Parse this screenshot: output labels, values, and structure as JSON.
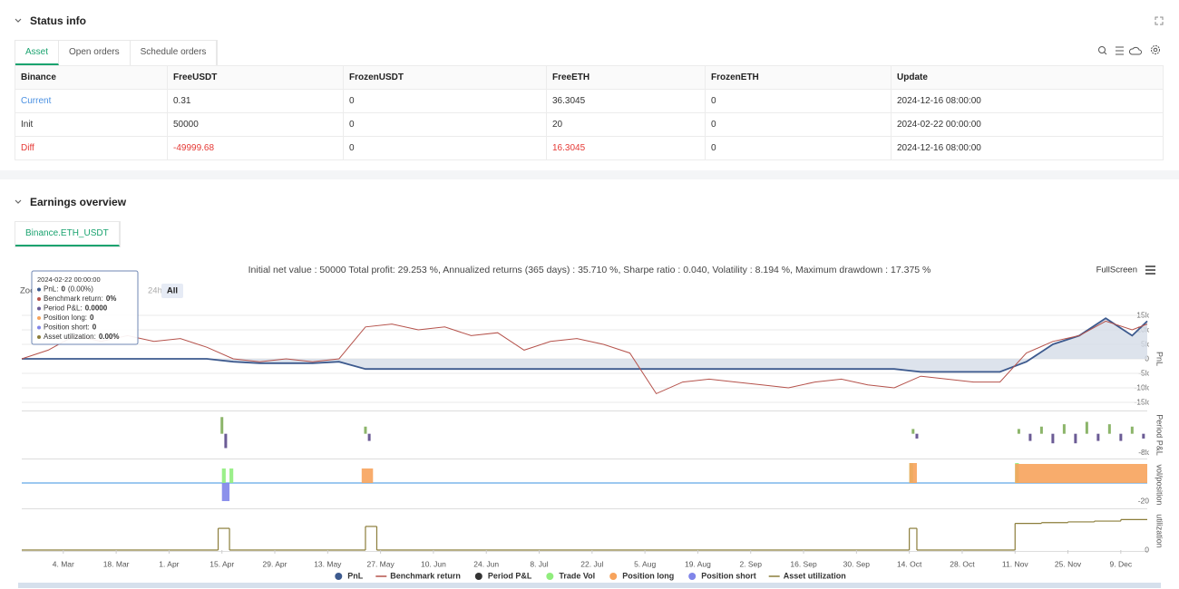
{
  "status_info": {
    "title": "Status info",
    "tabs": [
      "Asset",
      "Open orders",
      "Schedule orders"
    ],
    "table": {
      "columns": [
        "Binance",
        "FreeUSDT",
        "FrozenUSDT",
        "FreeETH",
        "FrozenETH",
        "Update"
      ],
      "rows": [
        [
          "Current",
          "0.31",
          "0",
          "36.3045",
          "0",
          "2024-12-16 08:00:00"
        ],
        [
          "Init",
          "50000",
          "0",
          "20",
          "0",
          "2024-02-22 00:00:00"
        ],
        [
          "Diff",
          "-49999.68",
          "0",
          "16.3045",
          "0",
          "2024-12-16 08:00:00"
        ]
      ]
    }
  },
  "earnings_overview": {
    "title": "Earnings overview",
    "tabs": [
      "Binance.ETH_USDT"
    ],
    "summary": "Initial net value : 50000 Total profit: 29.253 %, Annualized returns (365 days) : 35.710 %, Sharpe ratio : 0.040, Volatility : 8.194 %, Maximum drawdown : 17.375 %",
    "fullscreen": "FullScreen",
    "zoom": {
      "label": "Zoom",
      "buttons": [
        "24h",
        "All"
      ]
    },
    "tooltip": {
      "title": "2024-02-22 00:00:00",
      "items": [
        {
          "label": "PnL:",
          "value": "0",
          "note": "(0.00%)",
          "color": "#3d5a8e"
        },
        {
          "label": "Benchmark return:",
          "value": "0%",
          "color": "#b5524b"
        },
        {
          "label": "Period P&L:",
          "value": "0.0000",
          "color": "#6b5b95"
        },
        {
          "label": "Position long:",
          "value": "0",
          "color": "#f7a35c"
        },
        {
          "label": "Position short:",
          "value": "0",
          "color": "#8085e9"
        },
        {
          "label": "Asset utilization:",
          "value": "0.00%",
          "color": "#8b7d3a"
        }
      ]
    }
  },
  "chart_data": [
    {
      "type": "line",
      "ylabel": "PnL",
      "ylim": [
        -17500,
        17500
      ],
      "grid": true,
      "yticks": [
        {
          "value": 15000,
          "label": "15k"
        },
        {
          "value": 10000,
          "label": "10k"
        },
        {
          "value": 5000,
          "label": "5k"
        },
        0,
        {
          "value": -5000,
          "label": "-5k"
        },
        {
          "value": -10000,
          "label": "-10k"
        },
        {
          "value": -15000,
          "label": "-15k"
        }
      ],
      "x": [
        "2024-02-22",
        "2024-02-29",
        "2024-03-07",
        "2024-03-14",
        "2024-03-21",
        "2024-03-28",
        "2024-04-04",
        "2024-04-11",
        "2024-04-18",
        "2024-04-25",
        "2024-05-02",
        "2024-05-09",
        "2024-05-16",
        "2024-05-23",
        "2024-05-30",
        "2024-06-06",
        "2024-06-13",
        "2024-06-20",
        "2024-06-27",
        "2024-07-04",
        "2024-07-11",
        "2024-07-18",
        "2024-07-25",
        "2024-08-01",
        "2024-08-08",
        "2024-08-15",
        "2024-08-22",
        "2024-08-29",
        "2024-09-05",
        "2024-09-12",
        "2024-09-19",
        "2024-09-26",
        "2024-10-03",
        "2024-10-10",
        "2024-10-17",
        "2024-10-24",
        "2024-10-31",
        "2024-11-07",
        "2024-11-14",
        "2024-11-21",
        "2024-11-28",
        "2024-12-05",
        "2024-12-12",
        "2024-12-16"
      ],
      "series": [
        {
          "name": "PnL",
          "color": "#3d5a8e",
          "area_color": "#d5dce7",
          "values": [
            0,
            0,
            0,
            0,
            0,
            0,
            0,
            0,
            -1000,
            -1500,
            -1500,
            -1500,
            -1000,
            -3500,
            -3500,
            -3500,
            -3500,
            -3500,
            -3500,
            -3500,
            -3500,
            -3500,
            -3500,
            -3500,
            -3500,
            -3500,
            -3500,
            -3500,
            -3500,
            -3500,
            -3500,
            -3500,
            -3500,
            -3500,
            -4500,
            -4500,
            -4500,
            -4500,
            -1000,
            5000,
            8000,
            14000,
            8000,
            13000
          ]
        },
        {
          "name": "Benchmark return",
          "color": "#b5524b",
          "legend_marker": "line",
          "values": [
            0,
            3000,
            8000,
            6000,
            8000,
            6000,
            7000,
            4000,
            0,
            -1000,
            0,
            -1000,
            0,
            11000,
            12000,
            10000,
            11000,
            8000,
            9000,
            3000,
            6000,
            7000,
            5000,
            2000,
            -12000,
            -8000,
            -7000,
            -8000,
            -9000,
            -10000,
            -8000,
            -7000,
            -9000,
            -10000,
            -6000,
            -7000,
            -8000,
            -8000,
            2000,
            6000,
            8000,
            13000,
            10000,
            12000
          ]
        }
      ]
    },
    {
      "type": "bar",
      "ylabel": "Period P&L",
      "ylim": [
        -10000,
        9000
      ],
      "yticks": [
        {
          "value": -8000,
          "label": "-8k"
        }
      ],
      "series": [
        {
          "name": "Period P&L",
          "color": "#333333",
          "positive_color": "#8cb56a",
          "negative_color": "#6b5b95",
          "x": [
            "2024-04-15",
            "2024-04-16",
            "2024-05-23",
            "2024-05-24",
            "2024-10-15",
            "2024-10-16",
            "2024-11-12",
            "2024-11-15",
            "2024-11-18",
            "2024-11-21",
            "2024-11-24",
            "2024-11-27",
            "2024-11-30",
            "2024-12-03",
            "2024-12-06",
            "2024-12-09",
            "2024-12-12",
            "2024-12-15"
          ],
          "values": [
            7000,
            -6000,
            3000,
            -3000,
            2000,
            -2000,
            2000,
            -3000,
            3000,
            -4000,
            4000,
            -4000,
            5000,
            -3000,
            4000,
            -3000,
            3000,
            -2000
          ]
        }
      ]
    },
    {
      "type": "step-area",
      "ylabel": "vol/position",
      "ylim": [
        -27,
        23
      ],
      "yticks": [
        -20
      ],
      "series": [
        {
          "name": "Trade Vol",
          "color": "#90ed7d",
          "x": [
            "2024-02-22",
            "2024-04-15",
            "2024-04-16",
            "2024-04-17",
            "2024-04-18",
            "2024-10-14",
            "2024-10-15",
            "2024-11-11",
            "2024-11-12"
          ],
          "values": [
            0,
            16,
            0,
            16,
            0,
            22,
            0,
            22,
            0
          ]
        },
        {
          "name": "Position long",
          "color": "#f7a35c",
          "x": [
            "2024-02-22",
            "2024-05-22",
            "2024-05-25",
            "2024-10-14",
            "2024-10-16",
            "2024-11-11"
          ],
          "values": [
            0,
            16,
            0,
            22,
            0,
            21
          ]
        },
        {
          "name": "Position short",
          "color": "#8085e9",
          "x": [
            "2024-02-22",
            "2024-04-15",
            "2024-04-17"
          ],
          "values": [
            0,
            -20,
            0
          ]
        }
      ]
    },
    {
      "type": "step-line",
      "ylabel": "utilization",
      "ylim": [
        0,
        100
      ],
      "yticks": [
        0
      ],
      "xlim": [
        "2024-02-22",
        "2024-12-16"
      ],
      "xticks": [
        {
          "value": "2024-03-04",
          "label": "4. Mar"
        },
        {
          "value": "2024-03-18",
          "label": "18. Mar"
        },
        {
          "value": "2024-04-01",
          "label": "1. Apr"
        },
        {
          "value": "2024-04-15",
          "label": "15. Apr"
        },
        {
          "value": "2024-04-29",
          "label": "29. Apr"
        },
        {
          "value": "2024-05-13",
          "label": "13. May"
        },
        {
          "value": "2024-05-27",
          "label": "27. May"
        },
        {
          "value": "2024-06-10",
          "label": "10. Jun"
        },
        {
          "value": "2024-06-24",
          "label": "24. Jun"
        },
        {
          "value": "2024-07-08",
          "label": "8. Jul"
        },
        {
          "value": "2024-07-22",
          "label": "22. Jul"
        },
        {
          "value": "2024-08-05",
          "label": "5. Aug"
        },
        {
          "value": "2024-08-19",
          "label": "19. Aug"
        },
        {
          "value": "2024-09-02",
          "label": "2. Sep"
        },
        {
          "value": "2024-09-16",
          "label": "16. Sep"
        },
        {
          "value": "2024-09-30",
          "label": "30. Sep"
        },
        {
          "value": "2024-10-14",
          "label": "14. Oct"
        },
        {
          "value": "2024-10-28",
          "label": "28. Oct"
        },
        {
          "value": "2024-11-11",
          "label": "11. Nov"
        },
        {
          "value": "2024-11-25",
          "label": "25. Nov"
        },
        {
          "value": "2024-12-09",
          "label": "9. Dec"
        }
      ],
      "series": [
        {
          "name": "Asset utilization",
          "color": "#8b7d3a",
          "legend_marker": "line",
          "x": [
            "2024-02-22",
            "2024-04-14",
            "2024-04-17",
            "2024-05-23",
            "2024-05-26",
            "2024-10-14",
            "2024-10-16",
            "2024-11-11",
            "2024-11-18",
            "2024-11-25",
            "2024-12-02",
            "2024-12-09"
          ],
          "values": [
            0,
            57,
            0,
            62,
            0,
            57,
            0,
            70,
            72,
            74,
            76,
            80
          ]
        }
      ]
    }
  ]
}
